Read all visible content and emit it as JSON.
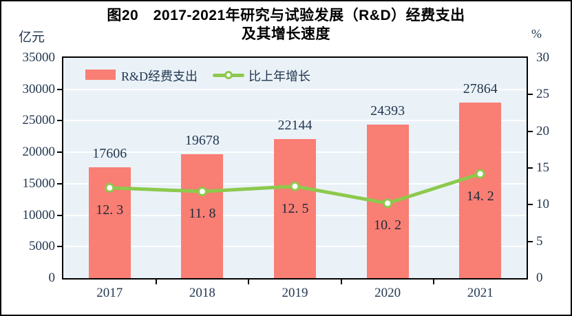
{
  "figure": {
    "title_line1": "图20　2017-2021年研究与试验发展（R&D）经费支出",
    "title_line2": "及其增长速度"
  },
  "axes": {
    "left_unit": "亿元",
    "right_unit": "%",
    "left_ticks": [
      0,
      5000,
      10000,
      15000,
      20000,
      25000,
      30000,
      35000
    ],
    "right_ticks": [
      0,
      5,
      10,
      15,
      20,
      25,
      30
    ]
  },
  "legend": {
    "bar_label": "R&D经费支出",
    "line_label": "比上年增长"
  },
  "chart_data": {
    "type": "bar",
    "subtype": "combo-bar-line",
    "title": "图20 2017-2021年研究与试验发展（R&D）经费支出及其增长速度",
    "categories": [
      "2017",
      "2018",
      "2019",
      "2020",
      "2021"
    ],
    "series": [
      {
        "name": "R&D经费支出",
        "type": "bar",
        "axis": "left",
        "unit": "亿元",
        "values": [
          17606,
          19678,
          22144,
          24393,
          27864
        ],
        "data_labels": [
          "17606",
          "19678",
          "22144",
          "24393",
          "27864"
        ]
      },
      {
        "name": "比上年增长",
        "type": "line",
        "axis": "right",
        "unit": "%",
        "values": [
          12.3,
          11.8,
          12.5,
          10.2,
          14.2
        ],
        "data_labels": [
          "12. 3",
          "11. 8",
          "12. 5",
          "10. 2",
          "14. 2"
        ]
      }
    ],
    "left_axis": {
      "label": "亿元",
      "min": 0,
      "max": 35000,
      "step": 5000
    },
    "right_axis": {
      "label": "%",
      "min": 0,
      "max": 30,
      "step": 5
    },
    "grid": true,
    "gridline_color": "white",
    "legend_position": "top-inside"
  },
  "colors": {
    "bar": "#f97e74",
    "line": "#8dc94d",
    "marker_fill": "#ffffff",
    "plot_background": "#eaf2f8",
    "gridline": "#ffffff",
    "axis_border": "#000000",
    "text": "#233750",
    "title_text": "#000000"
  }
}
